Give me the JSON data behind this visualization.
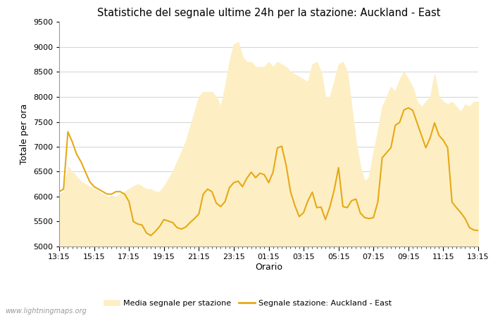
{
  "title": "Statistiche del segnale ultime 24h per la stazione: Auckland - East",
  "xlabel": "Orario",
  "ylabel": "Totale per ora",
  "ylim": [
    5000,
    9500
  ],
  "yticks": [
    5000,
    5500,
    6000,
    6500,
    7000,
    7500,
    8000,
    8500,
    9000,
    9500
  ],
  "xtick_labels": [
    "13:15",
    "15:15",
    "17:15",
    "19:15",
    "21:15",
    "23:15",
    "01:15",
    "03:15",
    "05:15",
    "07:15",
    "09:15",
    "11:15",
    "13:15"
  ],
  "background_color": "#ffffff",
  "fill_color": "#FDEFC3",
  "line_color": "#E6A817",
  "line_width": 1.5,
  "watermark": "www.lightningmaps.org",
  "legend_fill_label": "Media segnale per stazione",
  "legend_line_label": "Segnale stazione: Auckland - East",
  "n_points": 97,
  "line_y": [
    6100,
    6150,
    7300,
    7100,
    6850,
    6700,
    6500,
    6300,
    6200,
    6150,
    6100,
    6050,
    6050,
    6100,
    6100,
    6050,
    5900,
    5500,
    5450,
    5430,
    5270,
    5220,
    5300,
    5400,
    5540,
    5510,
    5480,
    5380,
    5350,
    5390,
    5480,
    5560,
    5650,
    6050,
    6150,
    6100,
    5870,
    5800,
    5900,
    6180,
    6280,
    6310,
    6200,
    6370,
    6490,
    6380,
    6470,
    6440,
    6280,
    6490,
    6980,
    7010,
    6630,
    6100,
    5820,
    5600,
    5680,
    5920,
    6090,
    5780,
    5790,
    5540,
    5790,
    6130,
    6580,
    5800,
    5780,
    5920,
    5950,
    5670,
    5580,
    5560,
    5580,
    5890,
    6780,
    6880,
    6980,
    7430,
    7490,
    7740,
    7780,
    7730,
    7480,
    7230,
    6980,
    7180,
    7480,
    7230,
    7130,
    6980,
    5890,
    5780,
    5680,
    5560,
    5380,
    5330,
    5320
  ],
  "fill_y": [
    6050,
    6100,
    6600,
    6500,
    6400,
    6300,
    6250,
    6200,
    6150,
    6100,
    6050,
    6000,
    5980,
    6000,
    6050,
    6100,
    6150,
    6200,
    6250,
    6200,
    6150,
    6150,
    6100,
    6100,
    6200,
    6350,
    6500,
    6700,
    6900,
    7100,
    7400,
    7700,
    8000,
    8100,
    8100,
    8100,
    8000,
    7800,
    8200,
    8700,
    9050,
    9100,
    8800,
    8700,
    8700,
    8600,
    8600,
    8600,
    8700,
    8600,
    8700,
    8650,
    8600,
    8500,
    8450,
    8400,
    8350,
    8300,
    8650,
    8700,
    8500,
    8000,
    8000,
    8300,
    8650,
    8700,
    8500,
    7800,
    7100,
    6600,
    6300,
    6400,
    6900,
    7300,
    7800,
    8000,
    8200,
    8100,
    8350,
    8500,
    8350,
    8200,
    7900,
    7800,
    7900,
    8000,
    8450,
    8000,
    7900,
    7850,
    7900,
    7800,
    7700,
    7850,
    7800,
    7900,
    7900
  ]
}
